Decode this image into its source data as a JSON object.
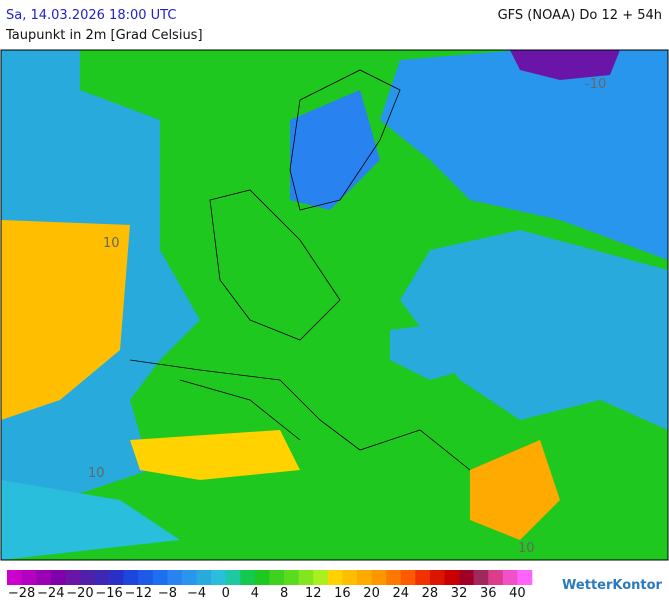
{
  "header": {
    "valid_time": "Sa, 14.03.2026 18:00 UTC",
    "model_run": "GFS (NOAA) Do 12 + 54h",
    "parameter": "Taupunkt in 2m [Grad Celsius]"
  },
  "map": {
    "contour_labels": [
      "10",
      "-10",
      "10",
      "10"
    ]
  },
  "legend": {
    "colors": [
      "#cc00cc",
      "#b400c0",
      "#9a00b4",
      "#8000aa",
      "#6a14a8",
      "#5020a8",
      "#3c28b4",
      "#2830c8",
      "#1e46dc",
      "#1e5ae6",
      "#1e6ef0",
      "#2882f0",
      "#2896ec",
      "#28aadc",
      "#28bedc",
      "#1ec8a0",
      "#14c850",
      "#1ec81e",
      "#3cd21e",
      "#5adc1e",
      "#82e61e",
      "#aaf01e",
      "#ffd200",
      "#ffbe00",
      "#ffaa00",
      "#ff9600",
      "#ff7800",
      "#ff5a00",
      "#f03200",
      "#dc1400",
      "#c80000",
      "#a00028",
      "#a0285a",
      "#dc3c8c",
      "#f050c8",
      "#ff64ff"
    ],
    "labels": [
      "−28",
      "−24",
      "−20",
      "−16",
      "−12",
      "−8",
      "−4",
      "0",
      "4",
      "8",
      "12",
      "16",
      "20",
      "24",
      "28",
      "32",
      "36",
      "40"
    ]
  },
  "logo": "WetterKontor"
}
